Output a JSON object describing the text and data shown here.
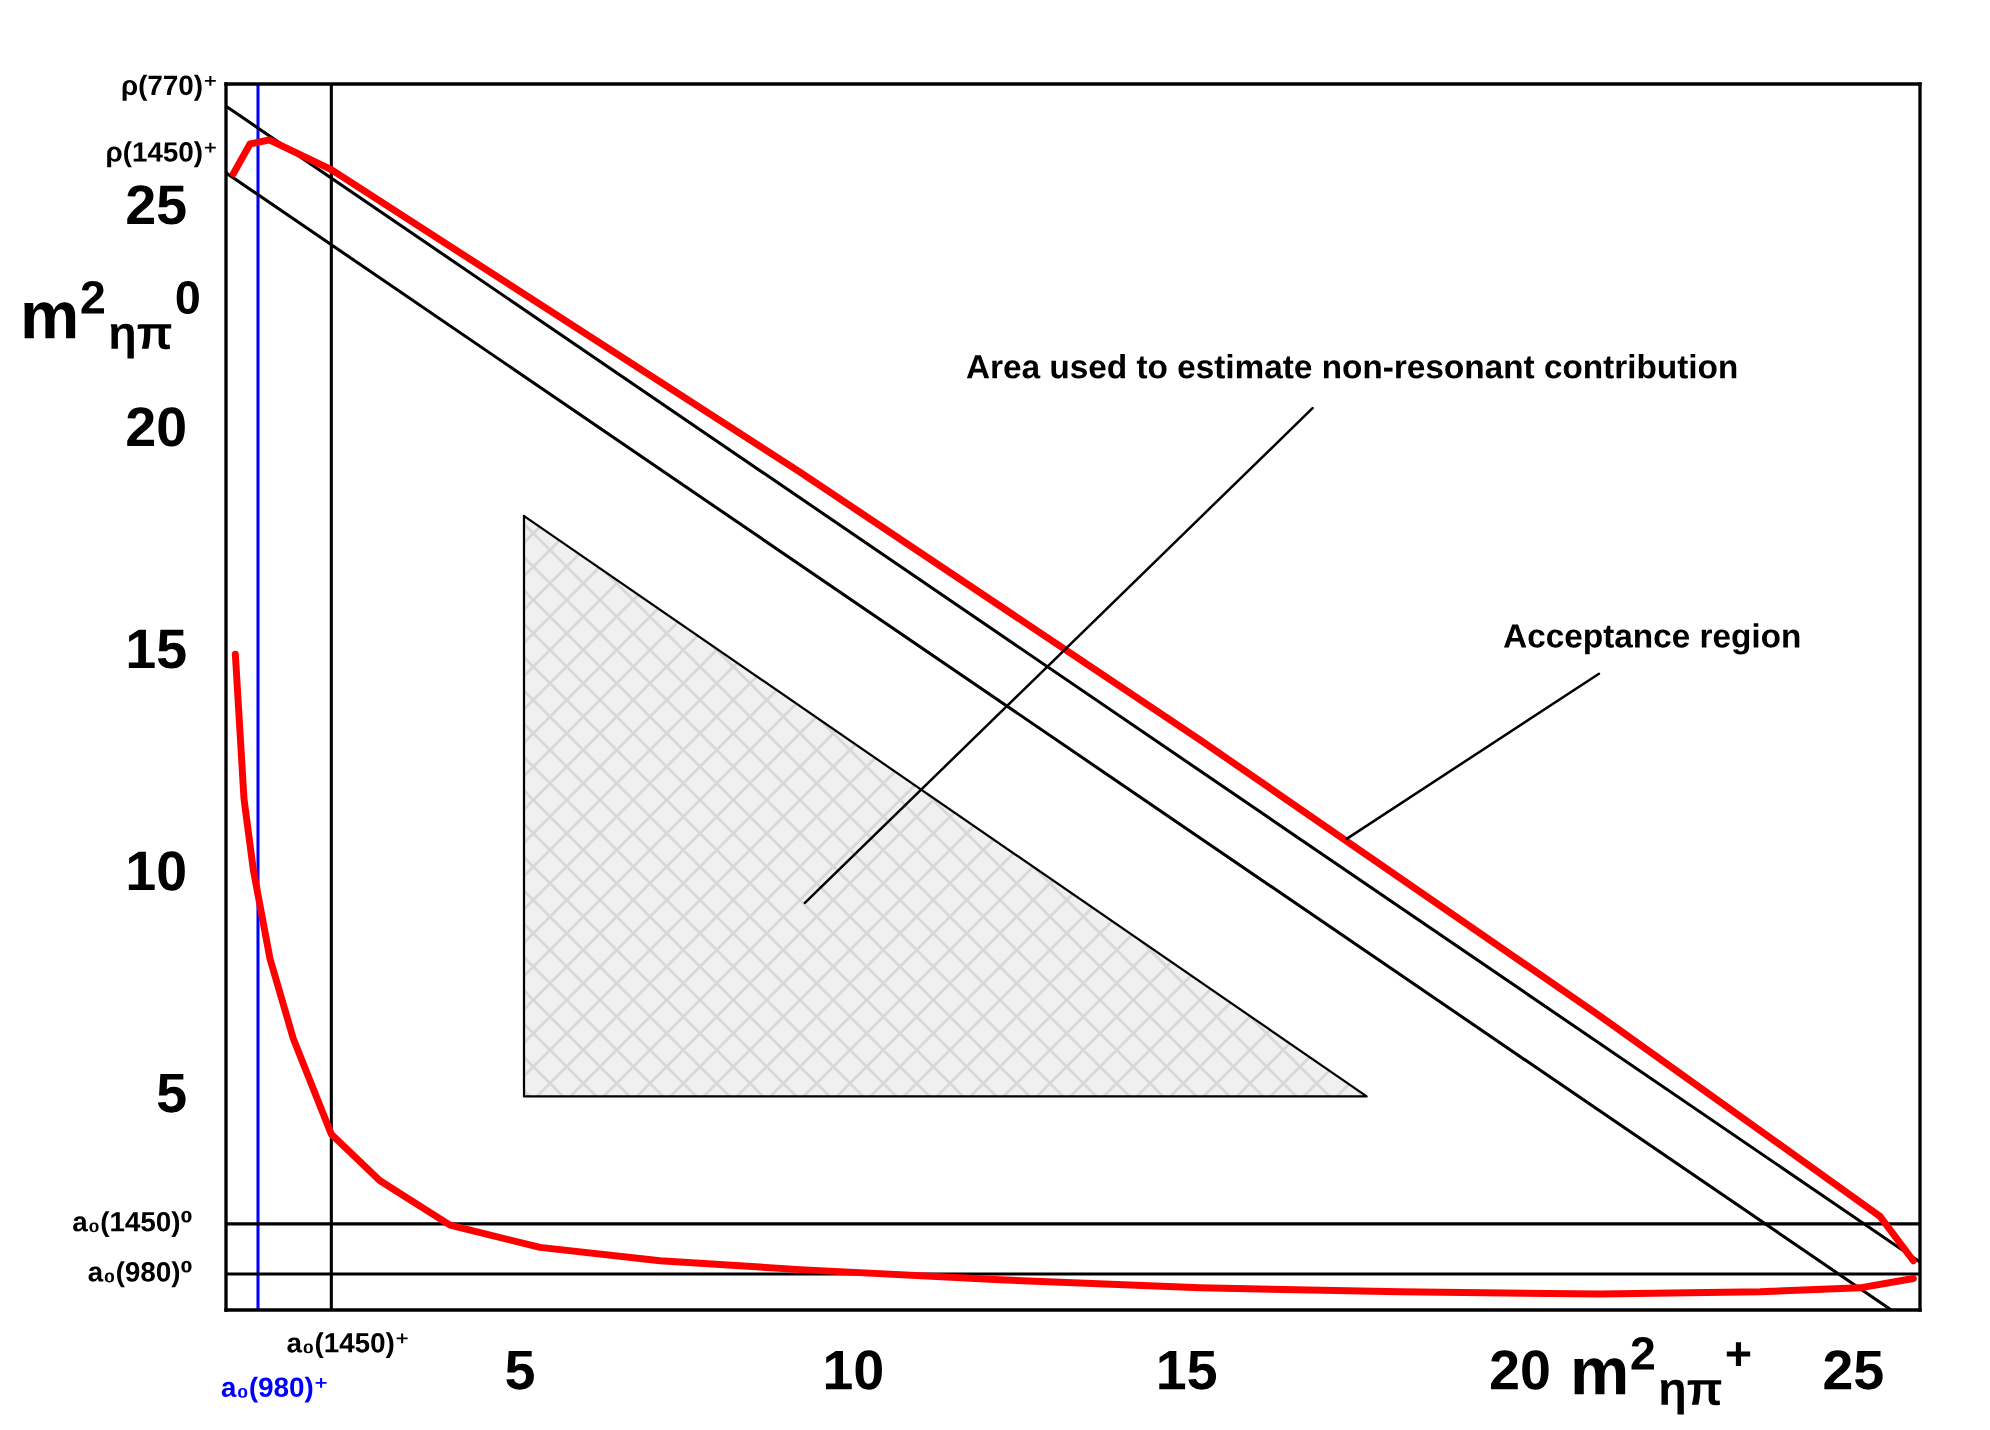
{
  "chart_data": {
    "type": "line",
    "xlabel": "m$^{2}$$_{ηπ}$$^{+}$",
    "ylabel": "m$^{2}$$_{ηπ}$$^{0}$",
    "xlim": [
      0.59,
      26.0
    ],
    "ylim": [
      0.09,
      27.7
    ],
    "xticks": [
      5,
      10,
      15,
      20,
      25
    ],
    "yticks": [
      5,
      10,
      15,
      20,
      25
    ],
    "grid": false,
    "legend": false,
    "series": [
      {
        "type": "area",
        "color": "#f0f0f0",
        "x": [
          5.06,
          5.06,
          17.7
        ],
        "values": [
          17.97,
          4.9,
          4.9
        ]
      },
      {
        "name": "ρ(770)⁺",
        "color": "#000000",
        "x": [
          0.59,
          26.0
        ],
        "values": [
          27.2,
          1.17
        ]
      },
      {
        "name": "ρ(1450)⁺",
        "color": "#000000",
        "x": [
          0.59,
          25.57
        ],
        "values": [
          25.7,
          0.09
        ]
      },
      {
        "color": "#ff0000",
        "x": [
          0.7,
          0.95,
          1.24,
          2.17,
          9.2,
          15.2,
          21.2,
          25.4,
          25.9
        ],
        "values": [
          25.68,
          26.35,
          26.44,
          25.77,
          18.96,
          12.93,
          6.71,
          2.2,
          1.2
        ]
      },
      {
        "color": "#ff0000",
        "x": [
          0.73,
          0.86,
          1.0,
          1.25,
          1.6,
          2.17,
          2.9,
          3.95,
          5.3,
          7.1,
          9.2,
          12.2,
          15.2,
          18.2,
          21.2,
          23.6,
          25.1,
          25.9
        ],
        "values": [
          14.86,
          11.6,
          10.0,
          8.0,
          6.2,
          4.05,
          3.0,
          2.0,
          1.5,
          1.2,
          1.0,
          0.77,
          0.59,
          0.5,
          0.45,
          0.5,
          0.59,
          0.8
        ]
      }
    ],
    "ref_lines": [
      {
        "axis": "x",
        "value": 1.07,
        "label": "a₀(980)⁺",
        "color": "#0000ff"
      },
      {
        "axis": "x",
        "value": 2.17,
        "label": "a₀(1450)⁺",
        "color": "#000000"
      },
      {
        "axis": "y",
        "value": 2.03,
        "label": "a₀(1450)⁰",
        "color": "#000000"
      },
      {
        "axis": "y",
        "value": 0.9,
        "label": "a₀(980)⁰",
        "color": "#000000"
      }
    ],
    "annotations": [
      "Area used to estimate non-resonant contribution",
      {
        "text": "Acceptance region",
        "x": 17.4,
        "y": 10.7
      }
    ]
  }
}
